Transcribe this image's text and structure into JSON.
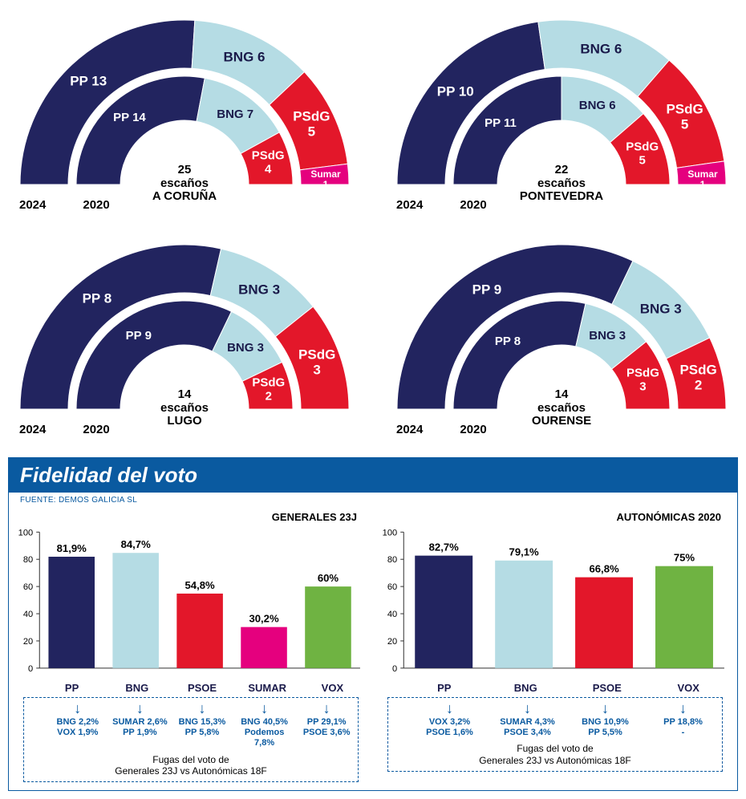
{
  "colors": {
    "pp": "#22245f",
    "bng": "#b5dce4",
    "psdg": "#e3172a",
    "sumar": "#e5007e",
    "vox": "#6fb342",
    "axis": "#333",
    "grid": "#bbb",
    "brand": "#0a5aa0"
  },
  "arches": [
    {
      "escanos": "25",
      "escanos_label": "escaños",
      "province": "A CORUÑA",
      "outer": [
        {
          "party": "PP",
          "seats": 13,
          "label": "PP 13",
          "color": "#22245f",
          "textcolor": "white"
        },
        {
          "party": "BNG",
          "seats": 6,
          "label": "BNG 6",
          "color": "#b5dce4",
          "textcolor": "dark"
        },
        {
          "party": "PSdG",
          "seats": 5,
          "label": "PSdG\n5",
          "color": "#e3172a",
          "textcolor": "white"
        },
        {
          "party": "Sumar",
          "seats": 1,
          "label": "Sumar 1",
          "color": "#e5007e",
          "textcolor": "white"
        }
      ],
      "inner": [
        {
          "party": "PP",
          "seats": 14,
          "label": "PP 14",
          "color": "#22245f",
          "textcolor": "white"
        },
        {
          "party": "BNG",
          "seats": 7,
          "label": "BNG 7",
          "color": "#b5dce4",
          "textcolor": "dark"
        },
        {
          "party": "PSdG",
          "seats": 4,
          "label": "PSdG\n4",
          "color": "#e3172a",
          "textcolor": "white"
        }
      ],
      "year_outer": "2024",
      "year_inner": "2020"
    },
    {
      "escanos": "22",
      "escanos_label": "escaños",
      "province": "PONTEVEDRA",
      "outer": [
        {
          "party": "PP",
          "seats": 10,
          "label": "PP 10",
          "color": "#22245f",
          "textcolor": "white"
        },
        {
          "party": "BNG",
          "seats": 6,
          "label": "BNG 6",
          "color": "#b5dce4",
          "textcolor": "dark"
        },
        {
          "party": "PSdG",
          "seats": 5,
          "label": "PSdG\n5",
          "color": "#e3172a",
          "textcolor": "white"
        },
        {
          "party": "Sumar",
          "seats": 1,
          "label": "Sumar 1",
          "color": "#e5007e",
          "textcolor": "white"
        }
      ],
      "inner": [
        {
          "party": "PP",
          "seats": 11,
          "label": "PP 11",
          "color": "#22245f",
          "textcolor": "white"
        },
        {
          "party": "BNG",
          "seats": 6,
          "label": "BNG 6",
          "color": "#b5dce4",
          "textcolor": "dark"
        },
        {
          "party": "PSdG",
          "seats": 5,
          "label": "PSdG\n5",
          "color": "#e3172a",
          "textcolor": "white"
        }
      ],
      "year_outer": "2024",
      "year_inner": "2020"
    },
    {
      "escanos": "14",
      "escanos_label": "escaños",
      "province": "LUGO",
      "outer": [
        {
          "party": "PP",
          "seats": 8,
          "label": "PP 8",
          "color": "#22245f",
          "textcolor": "white"
        },
        {
          "party": "BNG",
          "seats": 3,
          "label": "BNG 3",
          "color": "#b5dce4",
          "textcolor": "dark"
        },
        {
          "party": "PSdG",
          "seats": 3,
          "label": "PSdG\n3",
          "color": "#e3172a",
          "textcolor": "white"
        }
      ],
      "inner": [
        {
          "party": "PP",
          "seats": 9,
          "label": "PP 9",
          "color": "#22245f",
          "textcolor": "white"
        },
        {
          "party": "BNG",
          "seats": 3,
          "label": "BNG 3",
          "color": "#b5dce4",
          "textcolor": "dark"
        },
        {
          "party": "PSdG",
          "seats": 2,
          "label": "PSdG\n2",
          "color": "#e3172a",
          "textcolor": "white"
        }
      ],
      "year_outer": "2024",
      "year_inner": "2020"
    },
    {
      "escanos": "14",
      "escanos_label": "escaños",
      "province": "OURENSE",
      "outer": [
        {
          "party": "PP",
          "seats": 9,
          "label": "PP 9",
          "color": "#22245f",
          "textcolor": "white"
        },
        {
          "party": "BNG",
          "seats": 3,
          "label": "BNG 3",
          "color": "#b5dce4",
          "textcolor": "dark"
        },
        {
          "party": "PSdG",
          "seats": 2,
          "label": "PSdG\n2",
          "color": "#e3172a",
          "textcolor": "white"
        }
      ],
      "inner": [
        {
          "party": "PP",
          "seats": 8,
          "label": "PP 8",
          "color": "#22245f",
          "textcolor": "white"
        },
        {
          "party": "BNG",
          "seats": 3,
          "label": "BNG 3",
          "color": "#b5dce4",
          "textcolor": "dark"
        },
        {
          "party": "PSdG",
          "seats": 3,
          "label": "PSdG\n3",
          "color": "#e3172a",
          "textcolor": "white"
        }
      ],
      "year_outer": "2024",
      "year_inner": "2020"
    }
  ],
  "fidelidad": {
    "title": "Fidelidad del voto",
    "fuente": "FUENTE: DEMOS GALICIA SL",
    "ylim": [
      0,
      100
    ],
    "ytick_step": 20,
    "panels": [
      {
        "title": "GENERALES 23J",
        "bars": [
          {
            "cat": "PP",
            "value": 81.9,
            "label": "81,9%",
            "color": "#22245f",
            "fuga": "BNG 2,2%\nVOX 1,9%"
          },
          {
            "cat": "BNG",
            "value": 84.7,
            "label": "84,7%",
            "color": "#b5dce4",
            "fuga": "SUMAR 2,6%\nPP 1,9%"
          },
          {
            "cat": "PSOE",
            "value": 54.8,
            "label": "54,8%",
            "color": "#e3172a",
            "fuga": "BNG 15,3%\nPP 5,8%"
          },
          {
            "cat": "SUMAR",
            "value": 30.2,
            "label": "30,2%",
            "color": "#e5007e",
            "fuga": "BNG 40,5%\nPodemos 7,8%"
          },
          {
            "cat": "VOX",
            "value": 60,
            "label": "60%",
            "color": "#6fb342",
            "fuga": "PP 29,1%\nPSOE 3,6%"
          }
        ],
        "caption": "Fugas del voto de\nGenerales 23J vs Autonómicas 18F"
      },
      {
        "title": "AUTONÓMICAS 2020",
        "bars": [
          {
            "cat": "PP",
            "value": 82.7,
            "label": "82,7%",
            "color": "#22245f",
            "fuga": "VOX 3,2%\nPSOE 1,6%"
          },
          {
            "cat": "BNG",
            "value": 79.1,
            "label": "79,1%",
            "color": "#b5dce4",
            "fuga": "SUMAR 4,3%\nPSOE 3,4%"
          },
          {
            "cat": "PSOE",
            "value": 66.8,
            "label": "66,8%",
            "color": "#e3172a",
            "fuga": "BNG 10,9%\nPP 5,5%"
          },
          {
            "cat": "VOX",
            "value": 75,
            "label": "75%",
            "color": "#6fb342",
            "fuga": "PP 18,8%\n-"
          }
        ],
        "caption": "Fugas del voto de\nGenerales 23J vs Autonómicas 18F"
      }
    ]
  }
}
